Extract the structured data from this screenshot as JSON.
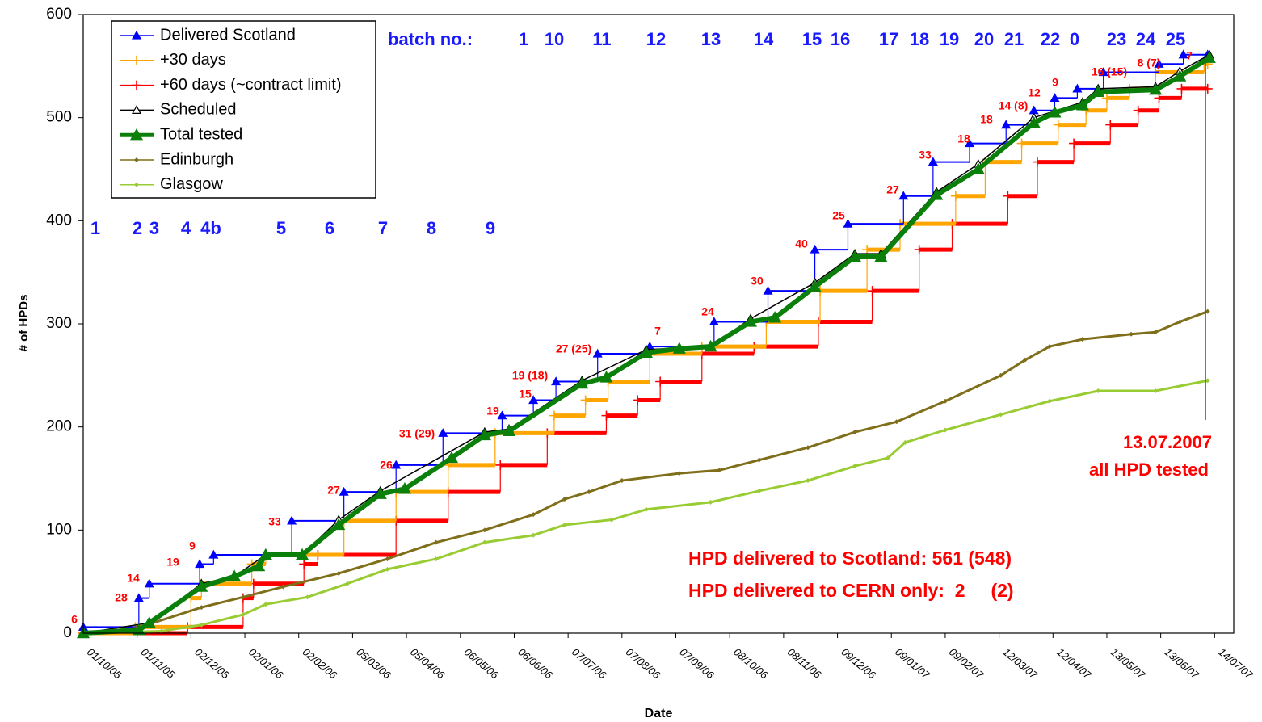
{
  "chart_data": {
    "type": "line",
    "x_label": "Date",
    "y_label": "# of HPDs",
    "xlim": [
      "01/10/05",
      "25/07/07"
    ],
    "xticks": [
      "01/10/05",
      "01/11/05",
      "02/12/05",
      "02/01/06",
      "02/02/06",
      "05/03/06",
      "05/04/06",
      "06/05/06",
      "06/06/06",
      "07/07/06",
      "07/08/06",
      "07/09/06",
      "08/10/06",
      "08/11/06",
      "09/12/06",
      "09/01/07",
      "09/02/07",
      "12/03/07",
      "12/04/07",
      "13/05/07",
      "13/06/07",
      "14/07/07"
    ],
    "ylim": [
      0,
      600
    ],
    "yticks": [
      0,
      100,
      200,
      300,
      400,
      500,
      600
    ],
    "legend": "upper left",
    "series": [
      {
        "name": "Delivered Scotland",
        "color": "#0000ff",
        "marker": "triangle",
        "step": true,
        "x": [
          "01/10/05",
          "02/11/05",
          "08/11/05",
          "07/12/05",
          "15/12/05",
          "29/01/06",
          "28/02/06",
          "30/03/06",
          "26/04/06",
          "30/05/06",
          "17/06/06",
          "30/06/06",
          "24/07/06",
          "23/08/06",
          "29/09/06",
          "30/10/06",
          "26/11/06",
          "15/12/06",
          "16/01/07",
          "02/02/07",
          "23/02/07",
          "16/03/07",
          "01/04/07",
          "13/04/07",
          "26/04/07",
          "11/05/07",
          "12/06/07",
          "26/06/07",
          "10/07/07"
        ],
        "values": [
          6,
          34,
          48,
          67,
          76,
          109,
          137,
          163,
          194,
          211,
          226,
          244,
          271,
          278,
          302,
          332,
          372,
          397,
          424,
          457,
          475,
          493,
          507,
          519,
          528,
          544,
          552,
          561,
          561
        ]
      },
      {
        "name": "+30 days",
        "color": "#ffa500",
        "marker": "plus",
        "step": true,
        "x": [
          "01/10/05",
          "31/10/05",
          "02/12/05",
          "08/12/05",
          "06/01/06",
          "14/01/06",
          "28/02/06",
          "30/03/06",
          "29/04/06",
          "26/05/06",
          "29/06/06",
          "17/07/06",
          "30/07/06",
          "23/08/06",
          "22/09/06",
          "29/10/06",
          "29/11/06",
          "26/12/06",
          "14/01/07",
          "15/02/07",
          "04/03/07",
          "25/03/07",
          "15/04/07",
          "01/05/07",
          "13/05/07",
          "26/05/07",
          "10/06/07",
          "08/07/07",
          "10/07/07"
        ],
        "values": [
          0,
          6,
          34,
          48,
          67,
          76,
          109,
          137,
          163,
          194,
          211,
          226,
          244,
          271,
          278,
          302,
          332,
          372,
          397,
          424,
          457,
          475,
          493,
          507,
          519,
          528,
          544,
          552,
          552
        ]
      },
      {
        "name": "+60 days (~contract limit)",
        "color": "#ff0000",
        "marker": "plus",
        "step": true,
        "x": [
          "01/10/05",
          "30/11/05",
          "01/01/06",
          "07/01/06",
          "05/02/06",
          "13/02/06",
          "30/03/06",
          "29/04/06",
          "29/05/06",
          "25/06/06",
          "29/07/06",
          "16/08/06",
          "29/08/06",
          "22/09/06",
          "22/10/06",
          "28/11/06",
          "29/12/06",
          "25/01/07",
          "13/02/07",
          "17/03/07",
          "03/04/07",
          "24/04/07",
          "15/05/07",
          "31/05/07",
          "12/06/07",
          "25/06/07",
          "10/07/07"
        ],
        "values": [
          0,
          6,
          34,
          48,
          67,
          76,
          109,
          137,
          163,
          194,
          211,
          226,
          244,
          271,
          278,
          302,
          332,
          372,
          397,
          424,
          457,
          475,
          493,
          507,
          519,
          528,
          528
        ]
      },
      {
        "name": "Scheduled",
        "color": "#000000",
        "marker": "triangle-open",
        "step": false,
        "x": [
          "01/10/05",
          "08/11/05",
          "08/12/05",
          "27/12/05",
          "14/01/06",
          "04/02/06",
          "25/02/06",
          "21/03/06",
          "20/05/06",
          "03/06/06",
          "15/07/06",
          "21/08/06",
          "27/09/06",
          "20/10/06",
          "26/11/06",
          "19/12/06",
          "03/01/07",
          "04/02/07",
          "28/02/07",
          "01/04/07",
          "29/04/07",
          "08/05/07",
          "10/06/07",
          "24/06/07",
          "11/07/07"
        ],
        "values": [
          0,
          10,
          48,
          55,
          76,
          76,
          110,
          138,
          195,
          198,
          245,
          275,
          278,
          305,
          340,
          368,
          368,
          428,
          455,
          500,
          515,
          528,
          530,
          545,
          561
        ]
      },
      {
        "name": "Total tested",
        "color": "#0a800a",
        "marker": "triangle",
        "step": false,
        "thick": true,
        "x": [
          "01/10/05",
          "02/11/05",
          "08/11/05",
          "08/12/05",
          "27/12/05",
          "10/01/06",
          "14/01/06",
          "04/02/06",
          "25/02/06",
          "21/03/06",
          "04/04/06",
          "01/05/06",
          "20/05/06",
          "03/06/06",
          "15/07/06",
          "29/07/06",
          "21/08/06",
          "09/09/06",
          "27/09/06",
          "20/10/06",
          "03/11/06",
          "26/11/06",
          "19/12/06",
          "03/01/07",
          "04/02/07",
          "28/02/07",
          "01/04/07",
          "13/04/07",
          "29/04/07",
          "08/05/07",
          "10/06/07",
          "24/06/07",
          "11/07/07"
        ],
        "values": [
          0,
          3,
          10,
          45,
          55,
          65,
          76,
          76,
          105,
          135,
          140,
          170,
          192,
          196,
          242,
          248,
          272,
          276,
          278,
          302,
          306,
          336,
          365,
          365,
          425,
          450,
          495,
          505,
          512,
          525,
          527,
          540,
          558
        ]
      },
      {
        "name": "Edinburgh",
        "color": "#7f6f1a",
        "marker": "diamond",
        "step": false,
        "x": [
          "01/10/05",
          "01/11/05",
          "08/12/05",
          "01/01/06",
          "24/01/06",
          "25/02/06",
          "25/03/06",
          "22/04/06",
          "20/05/06",
          "17/06/06",
          "05/07/06",
          "19/07/06",
          "07/08/06",
          "09/09/06",
          "02/10/06",
          "25/10/06",
          "22/11/06",
          "19/12/06",
          "12/01/07",
          "09/02/07",
          "13/03/07",
          "27/03/07",
          "10/04/07",
          "29/04/07",
          "27/05/07",
          "10/06/07",
          "24/06/07",
          "10/07/07"
        ],
        "values": [
          0,
          5,
          25,
          35,
          45,
          58,
          72,
          88,
          100,
          115,
          130,
          137,
          148,
          155,
          158,
          168,
          180,
          195,
          205,
          225,
          250,
          265,
          278,
          285,
          290,
          292,
          302,
          312
        ]
      },
      {
        "name": "Glasgow",
        "color": "#99cc33",
        "marker": "diamond",
        "step": false,
        "x": [
          "01/10/05",
          "15/11/05",
          "08/12/05",
          "01/01/06",
          "14/01/06",
          "07/02/06",
          "02/03/06",
          "25/03/06",
          "22/04/06",
          "20/05/06",
          "17/06/06",
          "05/07/06",
          "01/08/06",
          "21/08/06",
          "27/09/06",
          "25/10/06",
          "22/11/06",
          "19/12/06",
          "07/01/07",
          "17/01/07",
          "09/02/07",
          "13/03/07",
          "10/04/07",
          "08/05/07",
          "10/06/07",
          "10/07/07"
        ],
        "values": [
          0,
          2,
          8,
          18,
          28,
          35,
          48,
          62,
          72,
          88,
          95,
          105,
          110,
          120,
          127,
          138,
          148,
          162,
          170,
          185,
          197,
          212,
          225,
          235,
          235,
          245
        ]
      }
    ],
    "annotations": {
      "batch_heading": "batch no.:",
      "batch_top": [
        "1",
        "10",
        "11",
        "12",
        "13",
        "14",
        "15",
        "16",
        "17",
        "18",
        "19",
        "20",
        "21",
        "22",
        "0",
        "23",
        "24",
        "25"
      ],
      "batch_left": [
        "1",
        "2",
        "3",
        "4",
        "4b",
        "5",
        "6",
        "7",
        "8",
        "9"
      ],
      "delivery_counts": [
        "6",
        "28",
        "14",
        "19",
        "9",
        "33",
        "27",
        "26",
        "31 (29)",
        "19",
        "15",
        "19 (18)",
        "27 (25)",
        "7",
        "24",
        "30",
        "40",
        "25",
        "27",
        "33",
        "18",
        "18",
        "14 (8)",
        "12",
        "9",
        "16 (15)",
        "8 (7)",
        "7"
      ],
      "test_date": "13.07.2007",
      "test_note": "all HPD tested",
      "summary": [
        "HPD delivered to Scotland: 561 (548)",
        "HPD delivered to CERN only:  2     (2)"
      ]
    }
  }
}
